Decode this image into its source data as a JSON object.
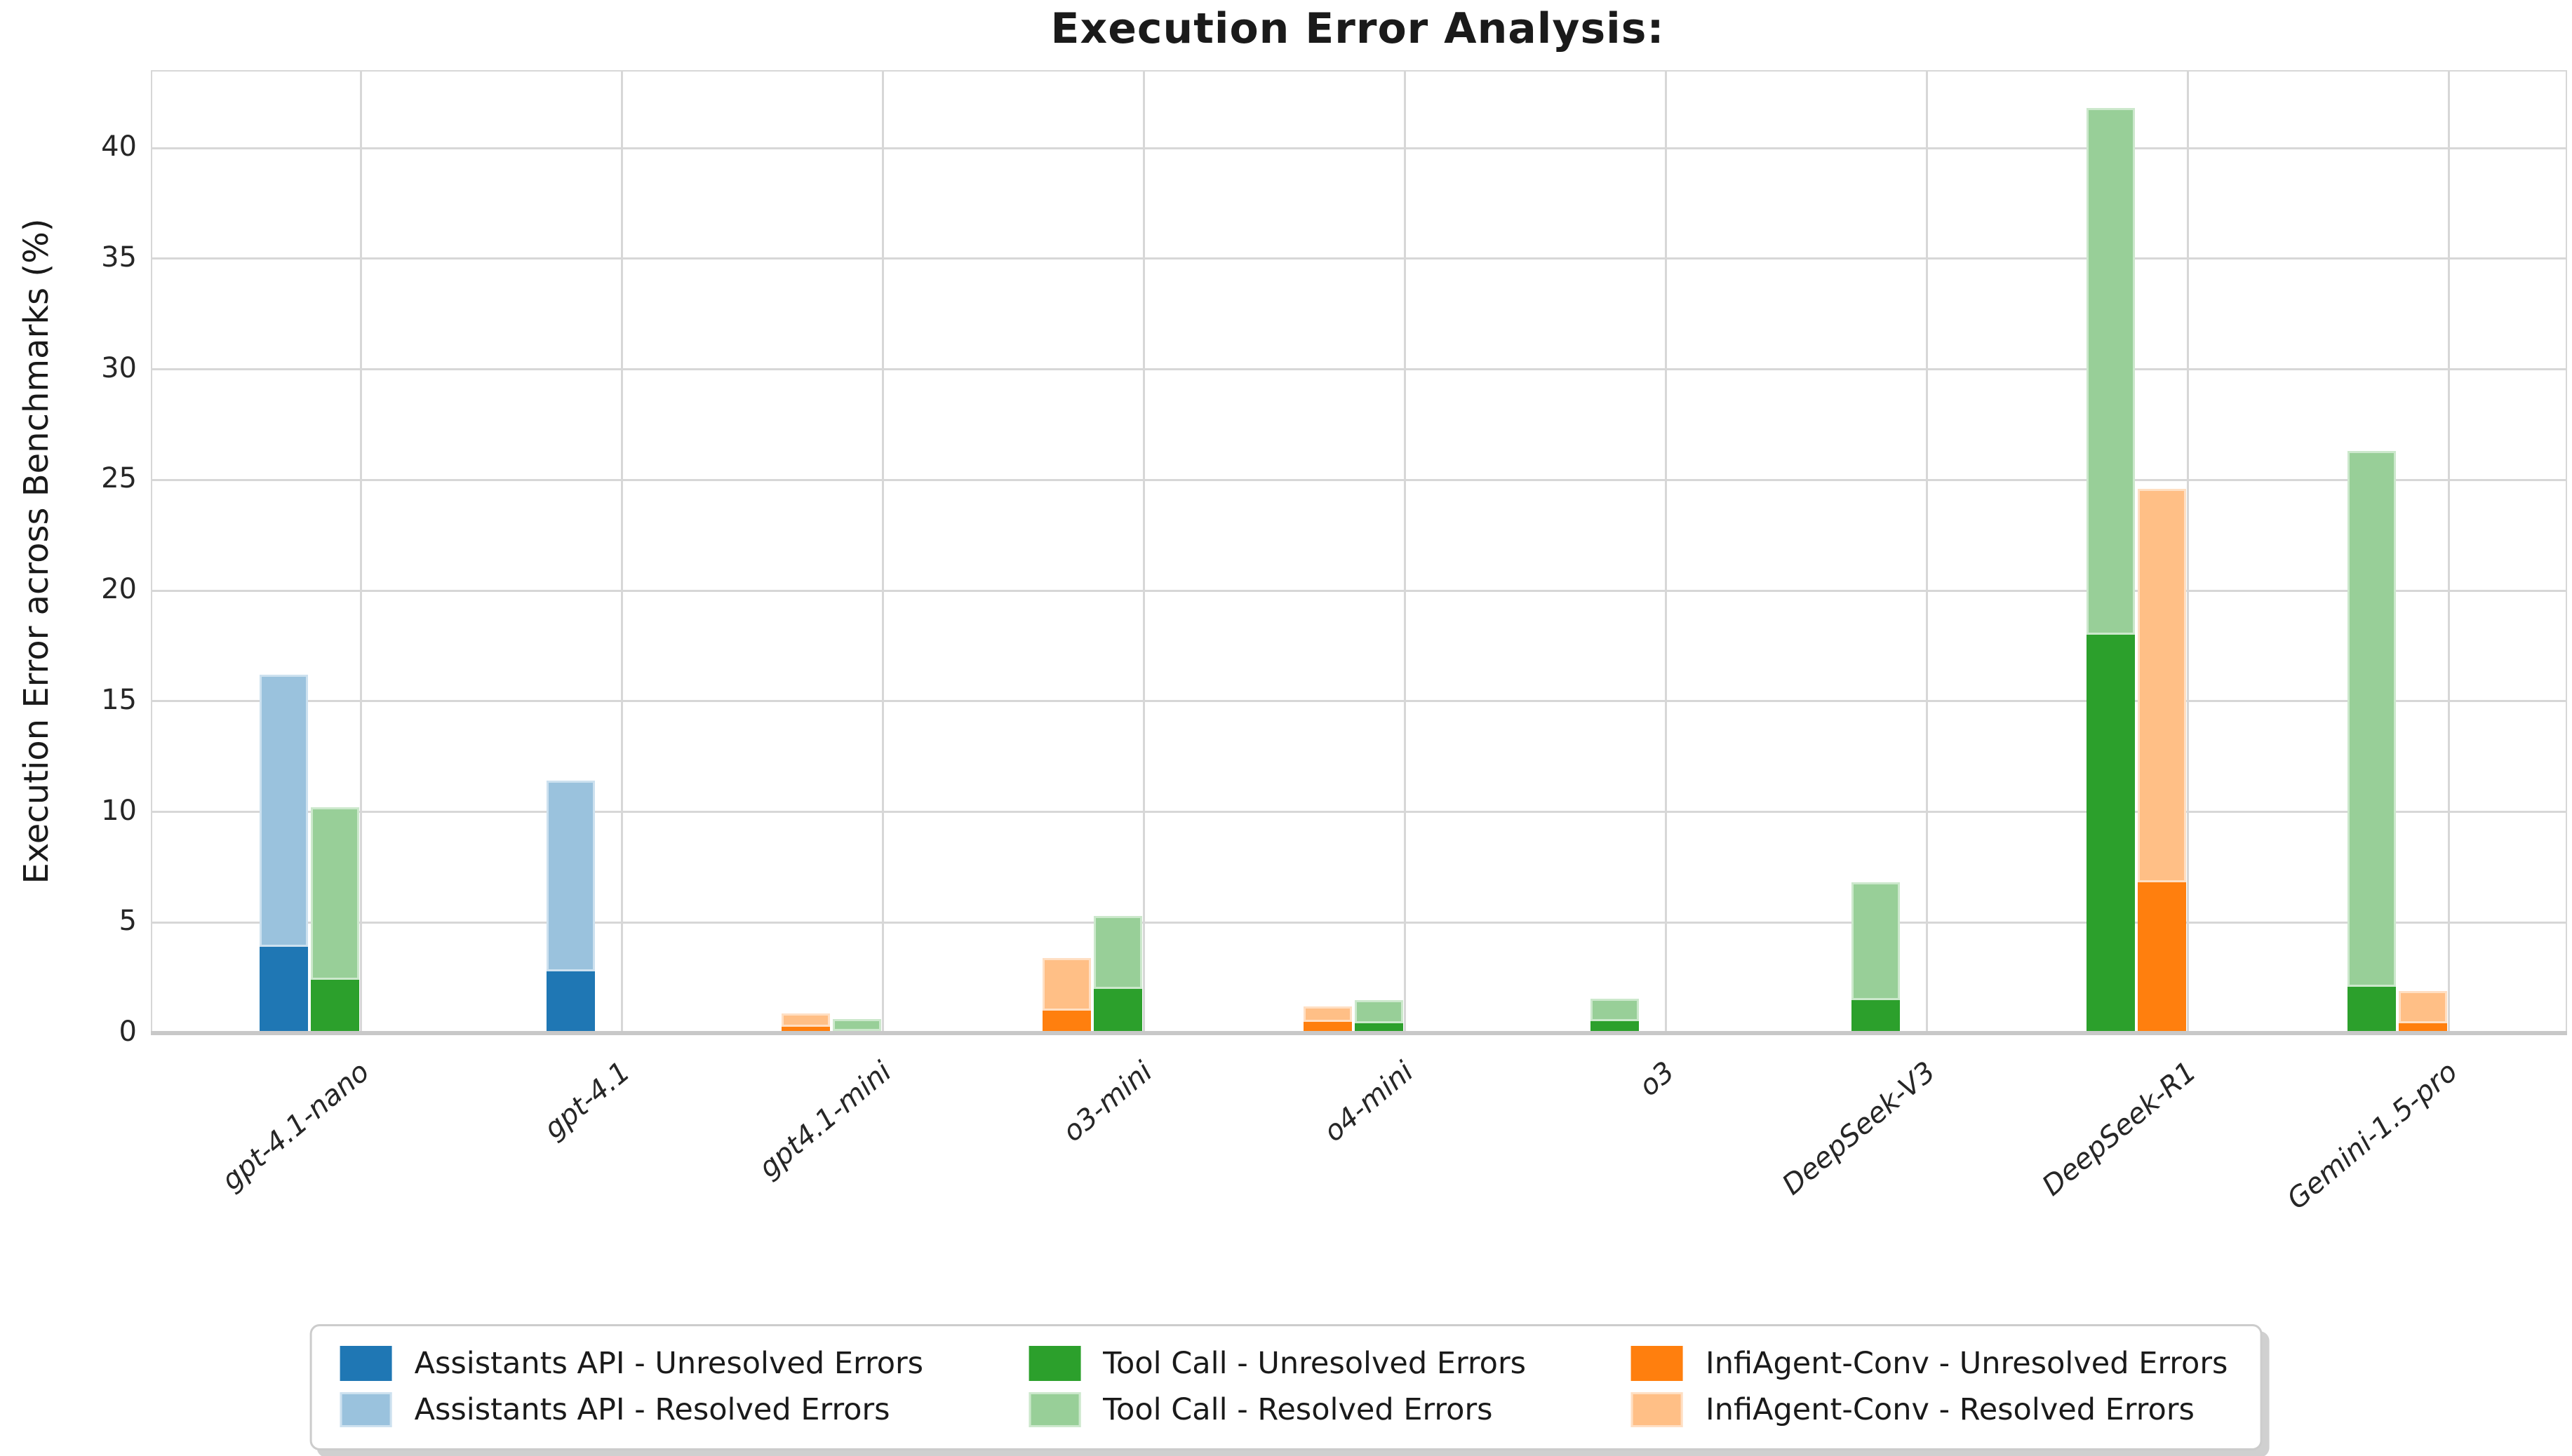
{
  "title": "Execution Error Analysis:",
  "chart_data": {
    "type": "bar",
    "subtype": "grouped-stacked-bars",
    "title": "Execution Error Analysis:",
    "ylabel": "Execution Error across Benchmarks (%)",
    "xlabel": "",
    "ylim": [
      0,
      43.4
    ],
    "yticks": [
      0,
      5,
      10,
      15,
      20,
      25,
      30,
      35,
      40
    ],
    "grid": "both",
    "legend_position": "bottom",
    "series_styles": {
      "assistants_api": {
        "name": "Assistants API",
        "solid": "#1f77b4",
        "light": "#9ac2dd",
        "light_border": "#cde1ef"
      },
      "tool_call": {
        "name": "Tool Call",
        "solid": "#2ca02c",
        "light": "#98cf98",
        "light_border": "#cce8cc"
      },
      "infiagent_conv": {
        "name": "InfiAgent-Conv",
        "solid": "#ff7f0e",
        "light": "#ffbf86",
        "light_border": "#ffdfc3"
      }
    },
    "groups": [
      {
        "label": "gpt-4.1-nano",
        "bars": [
          {
            "series": "assistants_api",
            "unresolved": 3.9,
            "resolved": 12.3
          },
          {
            "series": "tool_call",
            "unresolved": 2.4,
            "resolved": 7.8
          }
        ]
      },
      {
        "label": "gpt-4.1",
        "bars": [
          {
            "series": "assistants_api",
            "unresolved": 2.8,
            "resolved": 8.6
          }
        ]
      },
      {
        "label": "gpt4.1-mini",
        "bars": [
          {
            "series": "infiagent_conv",
            "unresolved": 0.3,
            "resolved": 0.6
          },
          {
            "series": "tool_call",
            "unresolved": 0.1,
            "resolved": 0.55
          }
        ]
      },
      {
        "label": "o3-mini",
        "bars": [
          {
            "series": "infiagent_conv",
            "unresolved": 1.0,
            "resolved": 2.4
          },
          {
            "series": "tool_call",
            "unresolved": 2.0,
            "resolved": 3.3
          }
        ]
      },
      {
        "label": "o4-mini",
        "bars": [
          {
            "series": "infiagent_conv",
            "unresolved": 0.5,
            "resolved": 0.7
          },
          {
            "series": "tool_call",
            "unresolved": 0.45,
            "resolved": 1.05
          }
        ]
      },
      {
        "label": "o3",
        "bars": [
          {
            "series": "tool_call",
            "unresolved": 0.55,
            "resolved": 1.0
          }
        ]
      },
      {
        "label": "DeepSeek-V3",
        "bars": [
          {
            "series": "tool_call",
            "unresolved": 1.5,
            "resolved": 5.3
          }
        ]
      },
      {
        "label": "DeepSeek-R1",
        "bars": [
          {
            "series": "tool_call",
            "unresolved": 18.0,
            "resolved": 23.8
          },
          {
            "series": "infiagent_conv",
            "unresolved": 6.8,
            "resolved": 17.8
          }
        ]
      },
      {
        "label": "Gemini-1.5-pro",
        "bars": [
          {
            "series": "tool_call",
            "unresolved": 2.1,
            "resolved": 24.2
          },
          {
            "series": "infiagent_conv",
            "unresolved": 0.45,
            "resolved": 1.45
          }
        ]
      }
    ]
  },
  "legend": {
    "items": [
      {
        "label": "Assistants API - Unresolved Errors",
        "color": "#1f77b4",
        "border": ""
      },
      {
        "label": "Assistants API - Resolved Errors",
        "color": "#9ac2dd",
        "border": "#cde1ef"
      },
      {
        "label": "Tool Call - Unresolved Errors",
        "color": "#2ca02c",
        "border": ""
      },
      {
        "label": "Tool Call - Resolved Errors",
        "color": "#98cf98",
        "border": "#cce8cc"
      },
      {
        "label": "InfiAgent-Conv - Unresolved Errors",
        "color": "#ff7f0e",
        "border": ""
      },
      {
        "label": "InfiAgent-Conv - Resolved Errors",
        "color": "#ffbf86",
        "border": "#ffdfc3"
      }
    ]
  }
}
